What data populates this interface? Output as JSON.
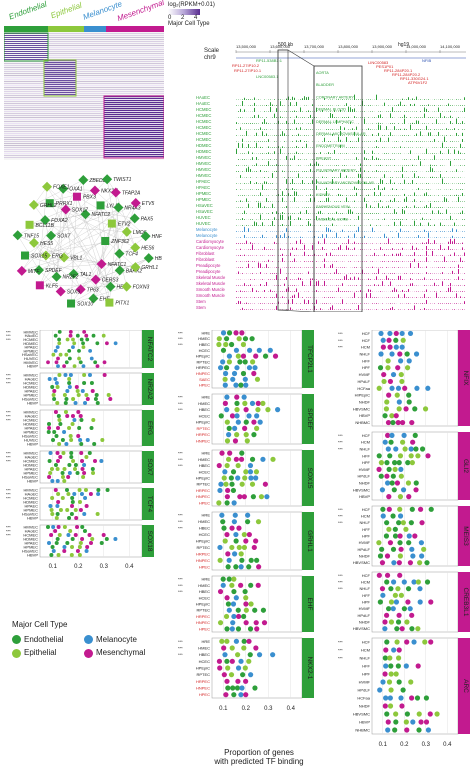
{
  "cell_types": {
    "endothelial": {
      "label": "Endothelial",
      "color": "#2e9f3a"
    },
    "epithelial": {
      "label": "Epithelial",
      "color": "#8dc83c"
    },
    "melanocyte": {
      "label": "Melanocyte",
      "color": "#3a8fcf"
    },
    "mesenchymal": {
      "label": "Mesenchymal",
      "color": "#c21a8f"
    }
  },
  "heatmap": {
    "scale_label": "log₂(RPKM+0.01)",
    "scale_ticks": [
      "0",
      "2",
      "4"
    ],
    "major_cell_type_label": "Major Cell Type"
  },
  "network": {
    "nodes": [
      "ZNF362",
      "VBL1",
      "NFATC2",
      "NFATC1",
      "SOX7",
      "ETV2",
      "TAL1",
      "SOX17",
      "TCF4",
      "ERG",
      "LYL1",
      "CERS3",
      "FOXA2",
      "LMO6",
      "NR2F2",
      "PBX3",
      "BARX2",
      "HES5",
      "NR4A3",
      "TP63",
      "PRRX1",
      "HES6",
      "SPDEF",
      "NKX2-1",
      "HES2",
      "BCL11B",
      "PAX5",
      "SOX9",
      "OXA1",
      "GRHL1",
      "SOX15",
      "TFAP2A",
      "EHF",
      "GRHL2",
      "HNF1B",
      "KLF5",
      "ZBED2",
      "FOXN3",
      "TNF15",
      "ETV5",
      "SOX10",
      "FOXE1",
      "HB1",
      "MITF",
      "TWIST1",
      "PITX1"
    ]
  },
  "browser": {
    "scale_label": "Scale",
    "chr_label": "chr9",
    "scale_bar": "500 kb",
    "genome": "hg19",
    "coords": [
      "13,500,000",
      "13,600,000",
      "13,700,000",
      "13,800,000",
      "13,900,000",
      "14,000,000",
      "14,100,000",
      "14,200,000"
    ],
    "genes_top": [
      "RP11-538B1:1",
      "NFIB"
    ],
    "genes_red": [
      "RP11-27IP10.2",
      "RP11-27IP10.1",
      "LINC00583",
      "PES1P01",
      "RP11-284P20.1",
      "RP11-284P20.2",
      "RP11-330G24.1",
      "ATP6V1F2"
    ],
    "gene_lnc": "LNC00583.1",
    "tracks": [
      "HAoEC",
      "HAoEC",
      "HCMEC",
      "HCMEC",
      "HCMEC",
      "HCMEC",
      "HCMEC",
      "HCMEC",
      "HDMEC",
      "HDMEC",
      "HMVEC",
      "HMVEC",
      "HMVEC",
      "HMVEC",
      "HPAEC",
      "HPAEC",
      "HPMEC",
      "HPMEC",
      "HSaVEC",
      "HSaVEC",
      "HUVEC",
      "HUVEC",
      "Melanocyte",
      "Melanocyte",
      "Cardiomyocyte",
      "Cardiomyocyte",
      "Fibroblast",
      "Fibroblast",
      "Preadipocyte",
      "Preadipocyte",
      "Skeletal Muscle",
      "Skeletal Muscle",
      "Smooth Muscle",
      "Smooth Muscle",
      "Stem",
      "Stem"
    ],
    "tissues": [
      "AORTA",
      "BLADDER",
      "CORONARY ARTERY",
      "DERMAL BLOOD",
      "DERMAL LYMPHATIC",
      "DERMAL MICROVASCULAR",
      "ENDOMETRIUM",
      "BREAST",
      "PULMONARY ARTERY",
      "PULMONARY MICROVASCULAR",
      "KIDNEY",
      "SAPHENOUS VEIN",
      "UMBILICAL CORD"
    ]
  },
  "panels": {
    "left": [
      {
        "tf": "NFATC2",
        "rows": [
          "HMVEC",
          "HAoEC",
          "HCMEC",
          "HDMEC",
          "HPAEC",
          "HPMEC",
          "HSaVEC",
          "HUVEC",
          "HMVEC",
          "HBVP"
        ]
      },
      {
        "tf": "NR2A2",
        "rows": [
          "HMVEC",
          "HAoEC",
          "HCMEC",
          "HDMEC",
          "HPAEC",
          "HPMEC",
          "HSaVEC",
          "HBVP"
        ]
      },
      {
        "tf": "ERG",
        "rows": [
          "HMVEC",
          "HAoEC",
          "HCMEC",
          "HDMEC",
          "HPAEC",
          "HPMEC",
          "HSaVEC",
          "HUVEC",
          "HBVP"
        ]
      },
      {
        "tf": "SOX7",
        "rows": [
          "HMVEC",
          "HAoEC",
          "HCMEC",
          "HDMEC",
          "HPAEC",
          "HPMEC",
          "HSaVEC",
          "HBVP"
        ]
      },
      {
        "tf": "TCF4",
        "rows": [
          "HMVEC",
          "HAoEC",
          "HCMEC",
          "HDMEC",
          "HPAEC",
          "HPMEC",
          "HSaVEC",
          "HBVP"
        ]
      },
      {
        "tf": "SOX18",
        "rows": [
          "HMVEC",
          "HAoEC",
          "HCMEC",
          "HDMEC",
          "HPAEC",
          "HPMEC",
          "HSaVEC",
          "HBVP"
        ]
      }
    ],
    "middle": [
      {
        "tf": "TFCP2L1",
        "rows": [
          "HRE",
          "HMEC",
          "HBEC",
          "HCEC",
          "HPEpiC",
          "RPTEC",
          "HRPEC",
          "HNPEC",
          "SAEC",
          "HPEC"
        ]
      },
      {
        "tf": "SPDEF",
        "rows": [
          "HRE",
          "HMEC",
          "HBEC",
          "HCEC",
          "HPEpiC",
          "RPTEC",
          "HRPEC",
          "HNPEC"
        ]
      },
      {
        "tf": "SOX15",
        "rows": [
          "HRE",
          "HMEC",
          "HBEC",
          "HCEC",
          "HPEpiC",
          "RPTEC",
          "HRPEC",
          "HNPEC",
          "HPEC"
        ]
      },
      {
        "tf": "GRHL1",
        "rows": [
          "HRE",
          "HMEC",
          "HBEC",
          "HCEC",
          "HPEpiC",
          "RPTEC",
          "HRPEC",
          "HNPEC",
          "HPEC"
        ]
      },
      {
        "tf": "EHF",
        "rows": [
          "HRE",
          "HMEC",
          "HBEC",
          "HCEC",
          "HPEpiC",
          "RPTEC",
          "HRPEC",
          "HNPEC",
          "HPEC"
        ]
      },
      {
        "tf": "NKX2-1",
        "rows": [
          "HRE",
          "HMEC",
          "HBEC",
          "HCEC",
          "HPEpiC",
          "RPTEC",
          "HRPEC",
          "HNPEC",
          "HPEC"
        ]
      }
    ],
    "right": [
      {
        "tf": "NFIX",
        "rows": [
          "HCF",
          "HCF",
          "HCM",
          "NHLF",
          "HFF",
          "HPF",
          "HVMF",
          "HPdLF",
          "HCFaa",
          "HIPEpiC",
          "NHDF",
          "HBVSMC",
          "HBVP",
          "NHBMC"
        ]
      },
      {
        "tf": "GLI2",
        "rows": [
          "HCF",
          "HCM",
          "NHLF",
          "HFF",
          "HPF",
          "HVMF",
          "HPdLF",
          "NHDF",
          "HBVSMC",
          "HBVP"
        ]
      },
      {
        "tf": "MEIS3",
        "rows": [
          "HCF",
          "HCM",
          "NHLF",
          "HFF",
          "HPF",
          "HVMF",
          "HPdLF",
          "NHDF",
          "HBVSMC"
        ]
      },
      {
        "tf": "CREB3L1",
        "rows": [
          "HCF",
          "HCM",
          "NHLF",
          "HFF",
          "HPF",
          "HVMF",
          "HPdLF",
          "NHDF",
          "HBVSMC"
        ]
      },
      {
        "tf": "ARC",
        "rows": [
          "HCF",
          "HCM",
          "NHLF",
          "HFF",
          "HPF",
          "HVMF",
          "HPdLF",
          "HCFaa",
          "NHDF",
          "HBVSMC",
          "HBVP",
          "NHBMC"
        ]
      }
    ]
  },
  "axis": {
    "ticks": [
      "0.1",
      "0.2",
      "0.3",
      "0.4"
    ],
    "xlabel_line1": "Proportion of genes",
    "xlabel_line2": "with predicted TF binding"
  },
  "legend": {
    "title": "Major Cell Type",
    "items": [
      "Endothelial",
      "Melanocyte",
      "Epithelial",
      "Mesenchymal"
    ]
  },
  "significance": "***"
}
